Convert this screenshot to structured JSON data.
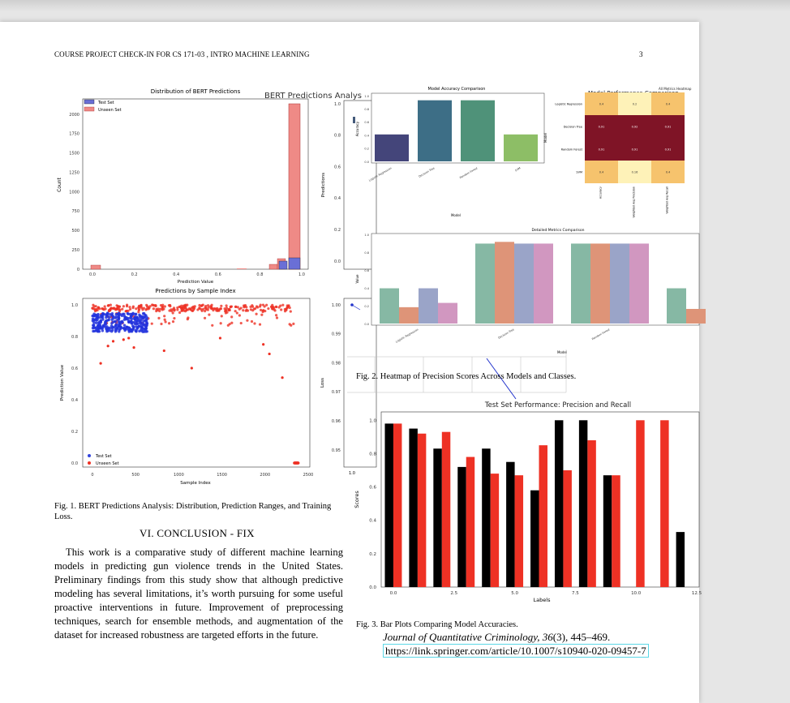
{
  "header": {
    "left": "COURSE PROJECT CHECK-IN FOR CS 171-03 , INTRO MACHINE LEARNING",
    "page_number": "3"
  },
  "fig1": {
    "caption": "Fig. 1.  BERT Predictions Analysis: Distribution, Prediction Ranges, and Training Loss.",
    "suptitle": "BERT Predictions Analys",
    "hist": {
      "title": "Distribution of BERT Predictions",
      "xlabel": "Prediction Value",
      "ylabel": "Count",
      "legend": [
        "Test Set",
        "Unseen Set"
      ],
      "xticks": [
        "0.0",
        "0.2",
        "0.4",
        "0.6",
        "0.8",
        "1.0"
      ],
      "yticks": [
        "0",
        "250",
        "500",
        "750",
        "1000",
        "1250",
        "1500",
        "1750",
        "2000"
      ]
    },
    "scatter": {
      "title": "Predictions by Sample Index",
      "xlabel": "Sample Index",
      "ylabel": "Prediction Value",
      "legend": [
        "Test Set",
        "Unseen Set"
      ],
      "xticks": [
        "0",
        "500",
        "1000",
        "1500",
        "2000",
        "2500"
      ],
      "yticks": [
        "0.0",
        "0.2",
        "0.4",
        "0.6",
        "0.8",
        "1.0"
      ]
    },
    "range": {
      "ylabel": "Predictions",
      "yticks": [
        "0.0",
        "0.2",
        "0.4",
        "0.6",
        "0.8",
        "1.0"
      ]
    },
    "loss": {
      "ylabel": "Loss",
      "yticks": [
        "0.95",
        "0.96",
        "0.97",
        "0.98",
        "0.99",
        "1.00"
      ],
      "xtick": "1.0"
    }
  },
  "fig2": {
    "caption": "Fig. 2.  Heatmap of Precision Scores Across Models and Classes.",
    "accuracy": {
      "title": "Model Accuracy Comparison",
      "xlabel": "Model",
      "ylabel": "Accuracy",
      "categories": [
        "Logistic Regression",
        "Decision Tree",
        "Random Forest",
        "SVM"
      ],
      "yticks": [
        "0.0",
        "0.2",
        "0.4",
        "0.6",
        "0.8",
        "1.0"
      ]
    },
    "heatmap": {
      "title": "Model Performance Comparison",
      "subtitle": "All Metrics Heatmap",
      "rows": [
        "Logistic Regression",
        "Decision Tree",
        "Random Forest",
        "SVM"
      ],
      "cols": [
        "Accuracy",
        "Weighted Avg Precision",
        "Weighted Avg Recall"
      ],
      "ylabel": "Model"
    },
    "detailed": {
      "title": "Detailed Metrics Comparison",
      "xlabel": "Model",
      "ylabel": "Value",
      "categories": [
        "Logistic Regression",
        "Decision Tree",
        "Random Forest"
      ],
      "yticks": [
        "0.0",
        "0.2",
        "0.4",
        "0.6",
        "0.8",
        "1.0"
      ]
    }
  },
  "fig3": {
    "caption": "Fig. 3.  Bar Plots Comparing Model Accuracies."
  },
  "chart_data": [
    {
      "type": "bar",
      "title": "Test Set Performance: Precision and Recall",
      "xlabel": "Labels",
      "ylabel": "Scores",
      "ylim": [
        0,
        1.05
      ],
      "xlim": [
        -0.5,
        12.6
      ],
      "x": [
        0,
        1,
        2,
        3,
        4,
        5,
        6,
        7,
        8,
        9,
        10,
        11,
        12
      ],
      "xticks": [
        "0.0",
        "2.5",
        "5.0",
        "7.5",
        "10.0",
        "12.5"
      ],
      "yticks": [
        "0.0",
        "0.2",
        "0.4",
        "0.6",
        "0.8",
        "1.0"
      ],
      "series": [
        {
          "name": "",
          "color": "#000000",
          "values": [
            0.98,
            0.95,
            0.83,
            0.72,
            0.83,
            0.75,
            0.58,
            1.0,
            1.0,
            0.67,
            null,
            null,
            0.33
          ]
        },
        {
          "name": "",
          "color": "#ee3124",
          "values": [
            0.98,
            0.92,
            0.93,
            0.78,
            0.68,
            0.67,
            0.85,
            0.7,
            0.88,
            0.67,
            1.0,
            1.0,
            null
          ]
        }
      ]
    },
    {
      "type": "bar",
      "title": "Model Accuracy Comparison",
      "categories": [
        "Logistic Regression",
        "Decision Tree",
        "Random Forest",
        "SVM"
      ],
      "values": [
        0.41,
        0.93,
        0.93,
        0.41
      ],
      "colors": [
        "#44457a",
        "#3d6e86",
        "#4f9279",
        "#8dbe66"
      ],
      "ylim": [
        0,
        1.05
      ]
    }
  ],
  "section": {
    "title": "VI. CONCLUSION - FIX"
  },
  "body_text": "This work is a comparative study of different machine learning models in predicting gun violence trends in the United States. Preliminary findings from this study show that although predictive modeling has several limitations, it’s worth pursuing for some useful proactive interventions in future. Improvement of preprocessing techniques, search for ensemble methods, and augmentation of the dataset for increased robustness are targeted efforts in the future.",
  "reference": {
    "journal": "Journal of Quantitative Criminology, 36",
    "issue": "(3), 445–469.",
    "url": "https://link.springer.com/article/10.1007/s10940-020-09457-7"
  }
}
